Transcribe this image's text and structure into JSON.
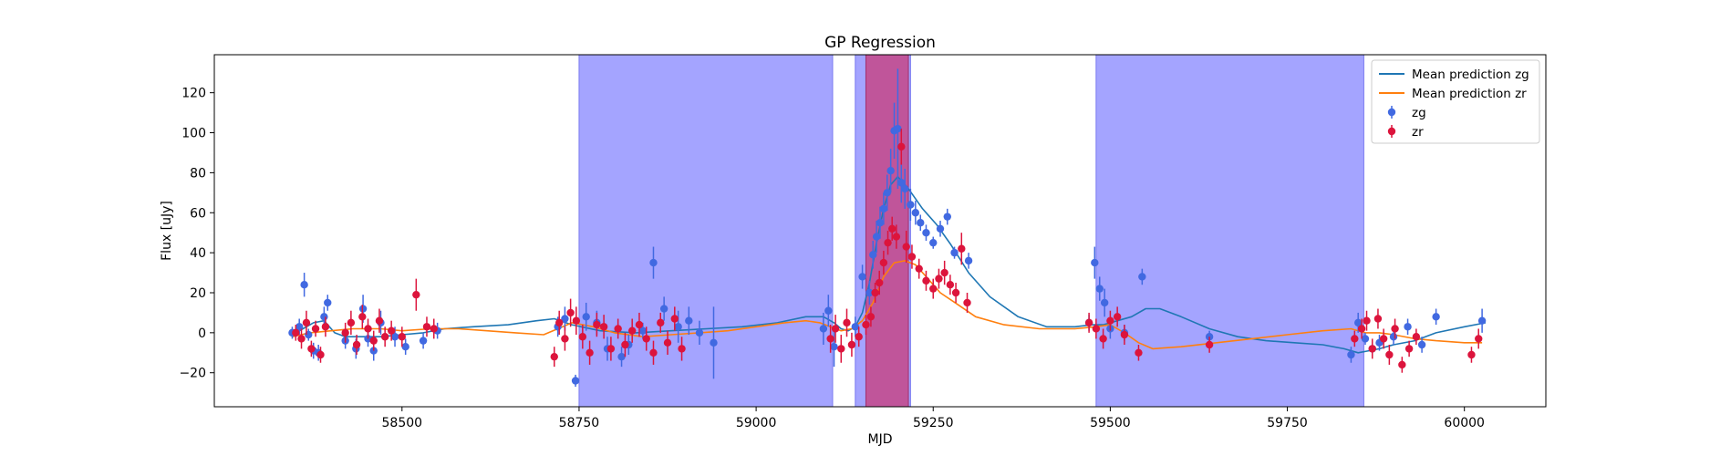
{
  "chart_data": {
    "type": "scatter",
    "title": "GP Regression",
    "xlabel": "MJD",
    "ylabel": "Flux [uJy]",
    "xlim": [
      58235,
      60115
    ],
    "ylim": [
      -37,
      139
    ],
    "xticks": [
      58500,
      58750,
      59000,
      59250,
      59500,
      59750,
      60000
    ],
    "yticks": [
      -20,
      0,
      20,
      40,
      60,
      80,
      100,
      120
    ],
    "grid": false,
    "legend_position": "top-right",
    "colors": {
      "zg": "#4169e1",
      "zr": "#dc143c",
      "mean_zg": "#1f77b4",
      "mean_zr": "#ff7f0e",
      "band_blue": "#a4a4ff",
      "band_overlap": "#c0559a"
    },
    "shaded_regions": [
      {
        "x0": 58750,
        "x1": 59108,
        "color": "blue"
      },
      {
        "x0": 59140,
        "x1": 59218,
        "color": "blue"
      },
      {
        "x0": 59155,
        "x1": 59215,
        "color": "overlap"
      },
      {
        "x0": 59480,
        "x1": 59858,
        "color": "blue"
      }
    ],
    "series": [
      {
        "name": "Mean prediction zg",
        "kind": "line",
        "x": [
          58345,
          58360,
          58375,
          58390,
          58405,
          58420,
          58440,
          58470,
          58500,
          58530,
          58560,
          58600,
          58650,
          58690,
          58715,
          58740,
          58780,
          58830,
          58880,
          58930,
          58980,
          59030,
          59070,
          59095,
          59110,
          59120,
          59130,
          59140,
          59150,
          59160,
          59170,
          59180,
          59190,
          59200,
          59215,
          59235,
          59255,
          59275,
          59300,
          59330,
          59370,
          59410,
          59450,
          59475,
          59490,
          59510,
          59530,
          59550,
          59570,
          59600,
          59640,
          59680,
          59720,
          59760,
          59800,
          59830,
          59850,
          59865,
          59880,
          59900,
          59930,
          59960,
          60000,
          60030
        ],
        "y": [
          -1,
          2,
          5,
          6,
          0,
          -2,
          -2,
          -2,
          -1,
          0,
          2,
          3,
          4,
          6,
          7,
          4,
          1,
          0,
          1,
          2,
          3,
          5,
          8,
          8,
          5,
          2,
          1,
          3,
          10,
          25,
          45,
          62,
          74,
          78,
          72,
          62,
          54,
          44,
          30,
          18,
          8,
          3,
          3,
          4,
          4,
          6,
          8,
          12,
          12,
          8,
          2,
          -2,
          -4,
          -5,
          -6,
          -8,
          -10,
          -9,
          -8,
          -6,
          -4,
          0,
          3,
          5
        ]
      },
      {
        "name": "Mean prediction zr",
        "kind": "line",
        "x": [
          58345,
          58370,
          58400,
          58430,
          58470,
          58500,
          58540,
          58580,
          58620,
          58660,
          58700,
          58720,
          58740,
          58770,
          58800,
          58840,
          58880,
          58920,
          58960,
          59000,
          59040,
          59070,
          59090,
          59105,
          59120,
          59135,
          59150,
          59165,
          59180,
          59195,
          59210,
          59225,
          59240,
          59260,
          59285,
          59310,
          59350,
          59400,
          59450,
          59480,
          59500,
          59520,
          59540,
          59560,
          59600,
          59650,
          59700,
          59750,
          59800,
          59840,
          59860,
          59880,
          59900,
          59930,
          59960,
          60000,
          60025
        ],
        "y": [
          -2,
          0,
          1,
          2,
          2,
          1,
          2,
          2,
          1,
          0,
          -1,
          2,
          5,
          3,
          0,
          -2,
          -1,
          0,
          1,
          3,
          5,
          6,
          5,
          3,
          1,
          2,
          6,
          15,
          28,
          35,
          36,
          34,
          28,
          20,
          14,
          8,
          4,
          2,
          2,
          3,
          4,
          0,
          -5,
          -8,
          -7,
          -5,
          -3,
          -1,
          1,
          2,
          0,
          0,
          -1,
          -3,
          -4,
          -5,
          -5
        ]
      },
      {
        "name": "zg",
        "kind": "errorbar",
        "x": [
          58345,
          58355,
          58362,
          58368,
          58375,
          58382,
          58390,
          58395,
          58420,
          58435,
          58445,
          58452,
          58460,
          58470,
          58490,
          58505,
          58530,
          58550,
          58720,
          58730,
          58745,
          58760,
          58775,
          58790,
          58810,
          58820,
          58840,
          58855,
          58870,
          58890,
          58905,
          58920,
          58940,
          59095,
          59102,
          59110,
          59140,
          59150,
          59160,
          59165,
          59170,
          59175,
          59180,
          59185,
          59190,
          59195,
          59200,
          59205,
          59210,
          59218,
          59225,
          59232,
          59240,
          59250,
          59260,
          59270,
          59280,
          59300,
          59470,
          59478,
          59485,
          59492,
          59500,
          59520,
          59545,
          59640,
          59840,
          59850,
          59860,
          59870,
          59880,
          59900,
          59920,
          59940,
          59960,
          60025
        ],
        "y": [
          0,
          3,
          24,
          -1,
          -9,
          -10,
          8,
          15,
          -4,
          -8,
          12,
          -3,
          -9,
          5,
          -2,
          -7,
          -4,
          1,
          3,
          7,
          -24,
          8,
          5,
          -8,
          -12,
          -6,
          1,
          35,
          12,
          3,
          6,
          0,
          -5,
          2,
          11,
          -7,
          3,
          28,
          20,
          39,
          48,
          55,
          62,
          70,
          81,
          101,
          102,
          75,
          72,
          64,
          60,
          55,
          50,
          45,
          52,
          58,
          40,
          36,
          5,
          35,
          22,
          15,
          2,
          0,
          28,
          -2,
          -11,
          5,
          -3,
          -8,
          -5,
          -2,
          3,
          -6,
          8,
          6
        ],
        "err": [
          3,
          4,
          6,
          3,
          4,
          4,
          5,
          4,
          4,
          5,
          7,
          4,
          5,
          6,
          5,
          4,
          4,
          4,
          5,
          6,
          3,
          7,
          6,
          6,
          5,
          5,
          4,
          8,
          6,
          8,
          7,
          6,
          18,
          8,
          8,
          10,
          5,
          6,
          6,
          7,
          8,
          8,
          8,
          9,
          11,
          14,
          30,
          10,
          10,
          8,
          6,
          4,
          4,
          3,
          4,
          4,
          3,
          4,
          4,
          8,
          6,
          7,
          5,
          4,
          4,
          3,
          4,
          5,
          3,
          4,
          4,
          4,
          4,
          4,
          4,
          6
        ]
      },
      {
        "name": "zr",
        "kind": "errorbar",
        "x": [
          58350,
          58358,
          58365,
          58372,
          58378,
          58385,
          58392,
          58420,
          58428,
          58436,
          58444,
          58452,
          58460,
          58468,
          58476,
          58485,
          58500,
          58520,
          58535,
          58545,
          58715,
          58722,
          58730,
          58738,
          58746,
          58755,
          58765,
          58775,
          58785,
          58795,
          58805,
          58815,
          58825,
          58835,
          58845,
          58855,
          58865,
          58875,
          58885,
          58895,
          59105,
          59112,
          59120,
          59128,
          59135,
          59145,
          59155,
          59162,
          59168,
          59174,
          59180,
          59186,
          59192,
          59198,
          59205,
          59212,
          59220,
          59230,
          59240,
          59250,
          59258,
          59266,
          59274,
          59282,
          59290,
          59298,
          59470,
          59480,
          59490,
          59500,
          59510,
          59520,
          59540,
          59640,
          59845,
          59855,
          59862,
          59870,
          59878,
          59886,
          59894,
          59902,
          59912,
          59922,
          59932,
          60010,
          60020
        ],
        "y": [
          0,
          -3,
          5,
          -8,
          2,
          -11,
          3,
          0,
          5,
          -6,
          8,
          2,
          -4,
          6,
          -2,
          1,
          -2,
          19,
          3,
          2,
          -12,
          5,
          -3,
          10,
          6,
          -2,
          -10,
          4,
          3,
          -8,
          2,
          -6,
          1,
          4,
          -3,
          -10,
          5,
          -5,
          7,
          -8,
          -3,
          2,
          -8,
          5,
          -6,
          -2,
          4,
          8,
          20,
          25,
          35,
          45,
          52,
          48,
          93,
          43,
          38,
          32,
          26,
          22,
          27,
          30,
          24,
          20,
          42,
          15,
          5,
          2,
          -3,
          6,
          8,
          -1,
          -10,
          -6,
          -3,
          2,
          6,
          -8,
          7,
          -3,
          -11,
          2,
          -16,
          -8,
          -2,
          -11,
          -3
        ],
        "err": [
          4,
          5,
          6,
          4,
          4,
          4,
          5,
          5,
          6,
          5,
          6,
          5,
          5,
          6,
          5,
          5,
          5,
          8,
          5,
          5,
          5,
          6,
          6,
          7,
          7,
          6,
          6,
          6,
          6,
          6,
          5,
          6,
          6,
          6,
          6,
          6,
          5,
          6,
          6,
          6,
          7,
          7,
          7,
          7,
          6,
          5,
          5,
          5,
          5,
          6,
          6,
          6,
          6,
          6,
          9,
          8,
          6,
          5,
          5,
          5,
          5,
          6,
          5,
          5,
          8,
          5,
          5,
          5,
          5,
          5,
          5,
          5,
          4,
          4,
          4,
          5,
          5,
          5,
          5,
          5,
          5,
          5,
          4,
          4,
          4,
          4,
          5
        ]
      }
    ]
  }
}
